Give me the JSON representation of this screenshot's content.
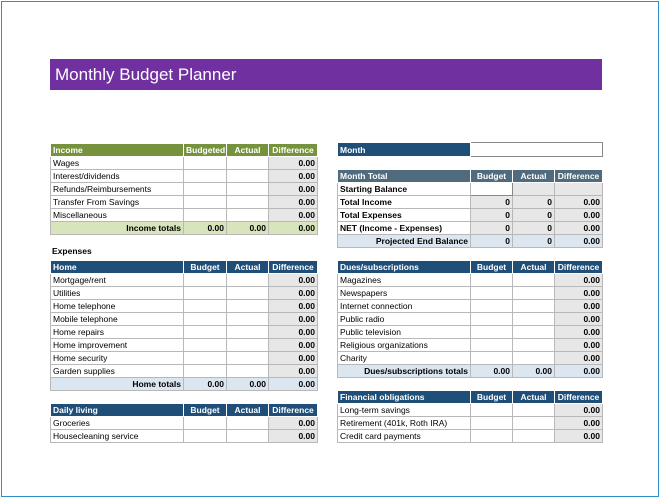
{
  "title": "Monthly Budget Planner",
  "income": {
    "header": [
      "Income",
      "Budgeted",
      "Actual",
      "Difference"
    ],
    "rows": [
      {
        "label": "Wages",
        "diff": "0.00"
      },
      {
        "label": "Interest/dividends",
        "diff": "0.00"
      },
      {
        "label": "Refunds/Reimbursements",
        "diff": "0.00"
      },
      {
        "label": "Transfer From Savings",
        "diff": "0.00"
      },
      {
        "label": "Miscellaneous",
        "diff": "0.00"
      }
    ],
    "total": {
      "label": "Income totals",
      "budget": "0.00",
      "actual": "0.00",
      "diff": "0.00"
    }
  },
  "expenses_label": "Expenses",
  "home": {
    "header": [
      "Home",
      "Budget",
      "Actual",
      "Difference"
    ],
    "rows": [
      {
        "label": "Mortgage/rent",
        "diff": "0.00"
      },
      {
        "label": "Utilities",
        "diff": "0.00"
      },
      {
        "label": "Home telephone",
        "diff": "0.00"
      },
      {
        "label": "Mobile telephone",
        "diff": "0.00"
      },
      {
        "label": "Home repairs",
        "diff": "0.00"
      },
      {
        "label": "Home improvement",
        "diff": "0.00"
      },
      {
        "label": "Home security",
        "diff": "0.00"
      },
      {
        "label": "Garden supplies",
        "diff": "0.00"
      }
    ],
    "total": {
      "label": "Home totals",
      "budget": "0.00",
      "actual": "0.00",
      "diff": "0.00"
    }
  },
  "daily": {
    "header": [
      "Daily living",
      "Budget",
      "Actual",
      "Difference"
    ],
    "rows": [
      {
        "label": "Groceries",
        "diff": "0.00"
      },
      {
        "label": "Housecleaning service",
        "diff": "0.00"
      }
    ]
  },
  "month": {
    "label": "Month"
  },
  "month_total": {
    "header": [
      "Month Total",
      "Budget",
      "Actual",
      "Difference"
    ],
    "rows": [
      {
        "label": "Starting Balance",
        "budget": "",
        "actual": "",
        "diff": ""
      },
      {
        "label": "Total Income",
        "budget": "0",
        "actual": "0",
        "diff": "0.00"
      },
      {
        "label": "Total Expenses",
        "budget": "0",
        "actual": "0",
        "diff": "0.00"
      },
      {
        "label": "NET (Income - Expenses)",
        "budget": "0",
        "actual": "0",
        "diff": "0.00"
      }
    ],
    "total": {
      "label": "Projected End Balance",
      "budget": "0",
      "actual": "0",
      "diff": "0.00"
    }
  },
  "dues": {
    "header": [
      "Dues/subscriptions",
      "Budget",
      "Actual",
      "Difference"
    ],
    "rows": [
      {
        "label": "Magazines",
        "diff": "0.00"
      },
      {
        "label": "Newspapers",
        "diff": "0.00"
      },
      {
        "label": "Internet connection",
        "diff": "0.00"
      },
      {
        "label": "Public radio",
        "diff": "0.00"
      },
      {
        "label": "Public television",
        "diff": "0.00"
      },
      {
        "label": "Religious organizations",
        "diff": "0.00"
      },
      {
        "label": "Charity",
        "diff": "0.00"
      }
    ],
    "total": {
      "label": "Dues/subscriptions totals",
      "budget": "0.00",
      "actual": "0.00",
      "diff": "0.00"
    }
  },
  "financial": {
    "header": [
      "Financial obligations",
      "Budget",
      "Actual",
      "Difference"
    ],
    "rows": [
      {
        "label": "Long-term savings",
        "diff": "0.00"
      },
      {
        "label": "Retirement (401k, Roth IRA)",
        "diff": "0.00"
      },
      {
        "label": "Credit card payments",
        "diff": "0.00"
      }
    ]
  }
}
